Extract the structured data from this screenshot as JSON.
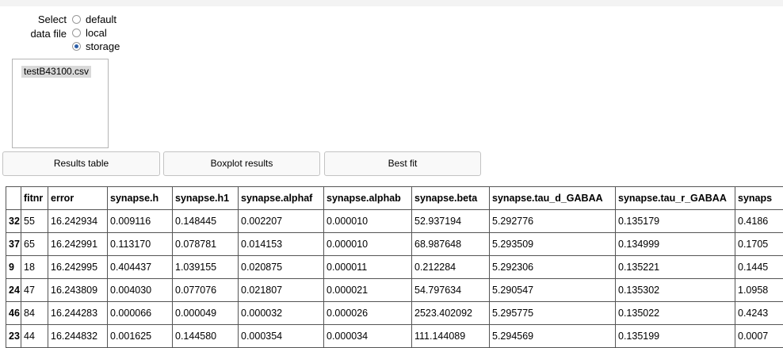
{
  "selector": {
    "label": "Select data file",
    "options": [
      "default",
      "local",
      "storage"
    ],
    "selected": "storage"
  },
  "files": [
    "testB43100.csv"
  ],
  "buttons": {
    "results_table": "Results table",
    "boxplot_results": "Boxplot results",
    "best_fit": "Best fit"
  },
  "table": {
    "columns": [
      "",
      "fitnr",
      "error",
      "synapse.h",
      "synapse.h1",
      "synapse.alphaf",
      "synapse.alphab",
      "synapse.beta",
      "synapse.tau_d_GABAA",
      "synapse.tau_r_GABAA",
      "synaps"
    ],
    "rows": [
      [
        "32",
        "55",
        "16.242934",
        "0.009116",
        "0.148445",
        "0.002207",
        "0.000010",
        "52.937194",
        "5.292776",
        "0.135179",
        "0.4186"
      ],
      [
        "37",
        "65",
        "16.242991",
        "0.113170",
        "0.078781",
        "0.014153",
        "0.000010",
        "68.987648",
        "5.293509",
        "0.134999",
        "0.1705"
      ],
      [
        "9",
        "18",
        "16.242995",
        "0.404437",
        "1.039155",
        "0.020875",
        "0.000011",
        "0.212284",
        "5.292306",
        "0.135221",
        "0.1445"
      ],
      [
        "24",
        "47",
        "16.243809",
        "0.004030",
        "0.077076",
        "0.021807",
        "0.000021",
        "54.797634",
        "5.290547",
        "0.135302",
        "1.0958"
      ],
      [
        "46",
        "84",
        "16.244283",
        "0.000066",
        "0.000049",
        "0.000032",
        "0.000026",
        "2523.402092",
        "5.295775",
        "0.135022",
        "0.4243"
      ],
      [
        "23",
        "44",
        "16.244832",
        "0.001625",
        "0.144580",
        "0.000354",
        "0.000034",
        "111.144089",
        "5.294569",
        "0.135199",
        "0.0007"
      ]
    ]
  }
}
